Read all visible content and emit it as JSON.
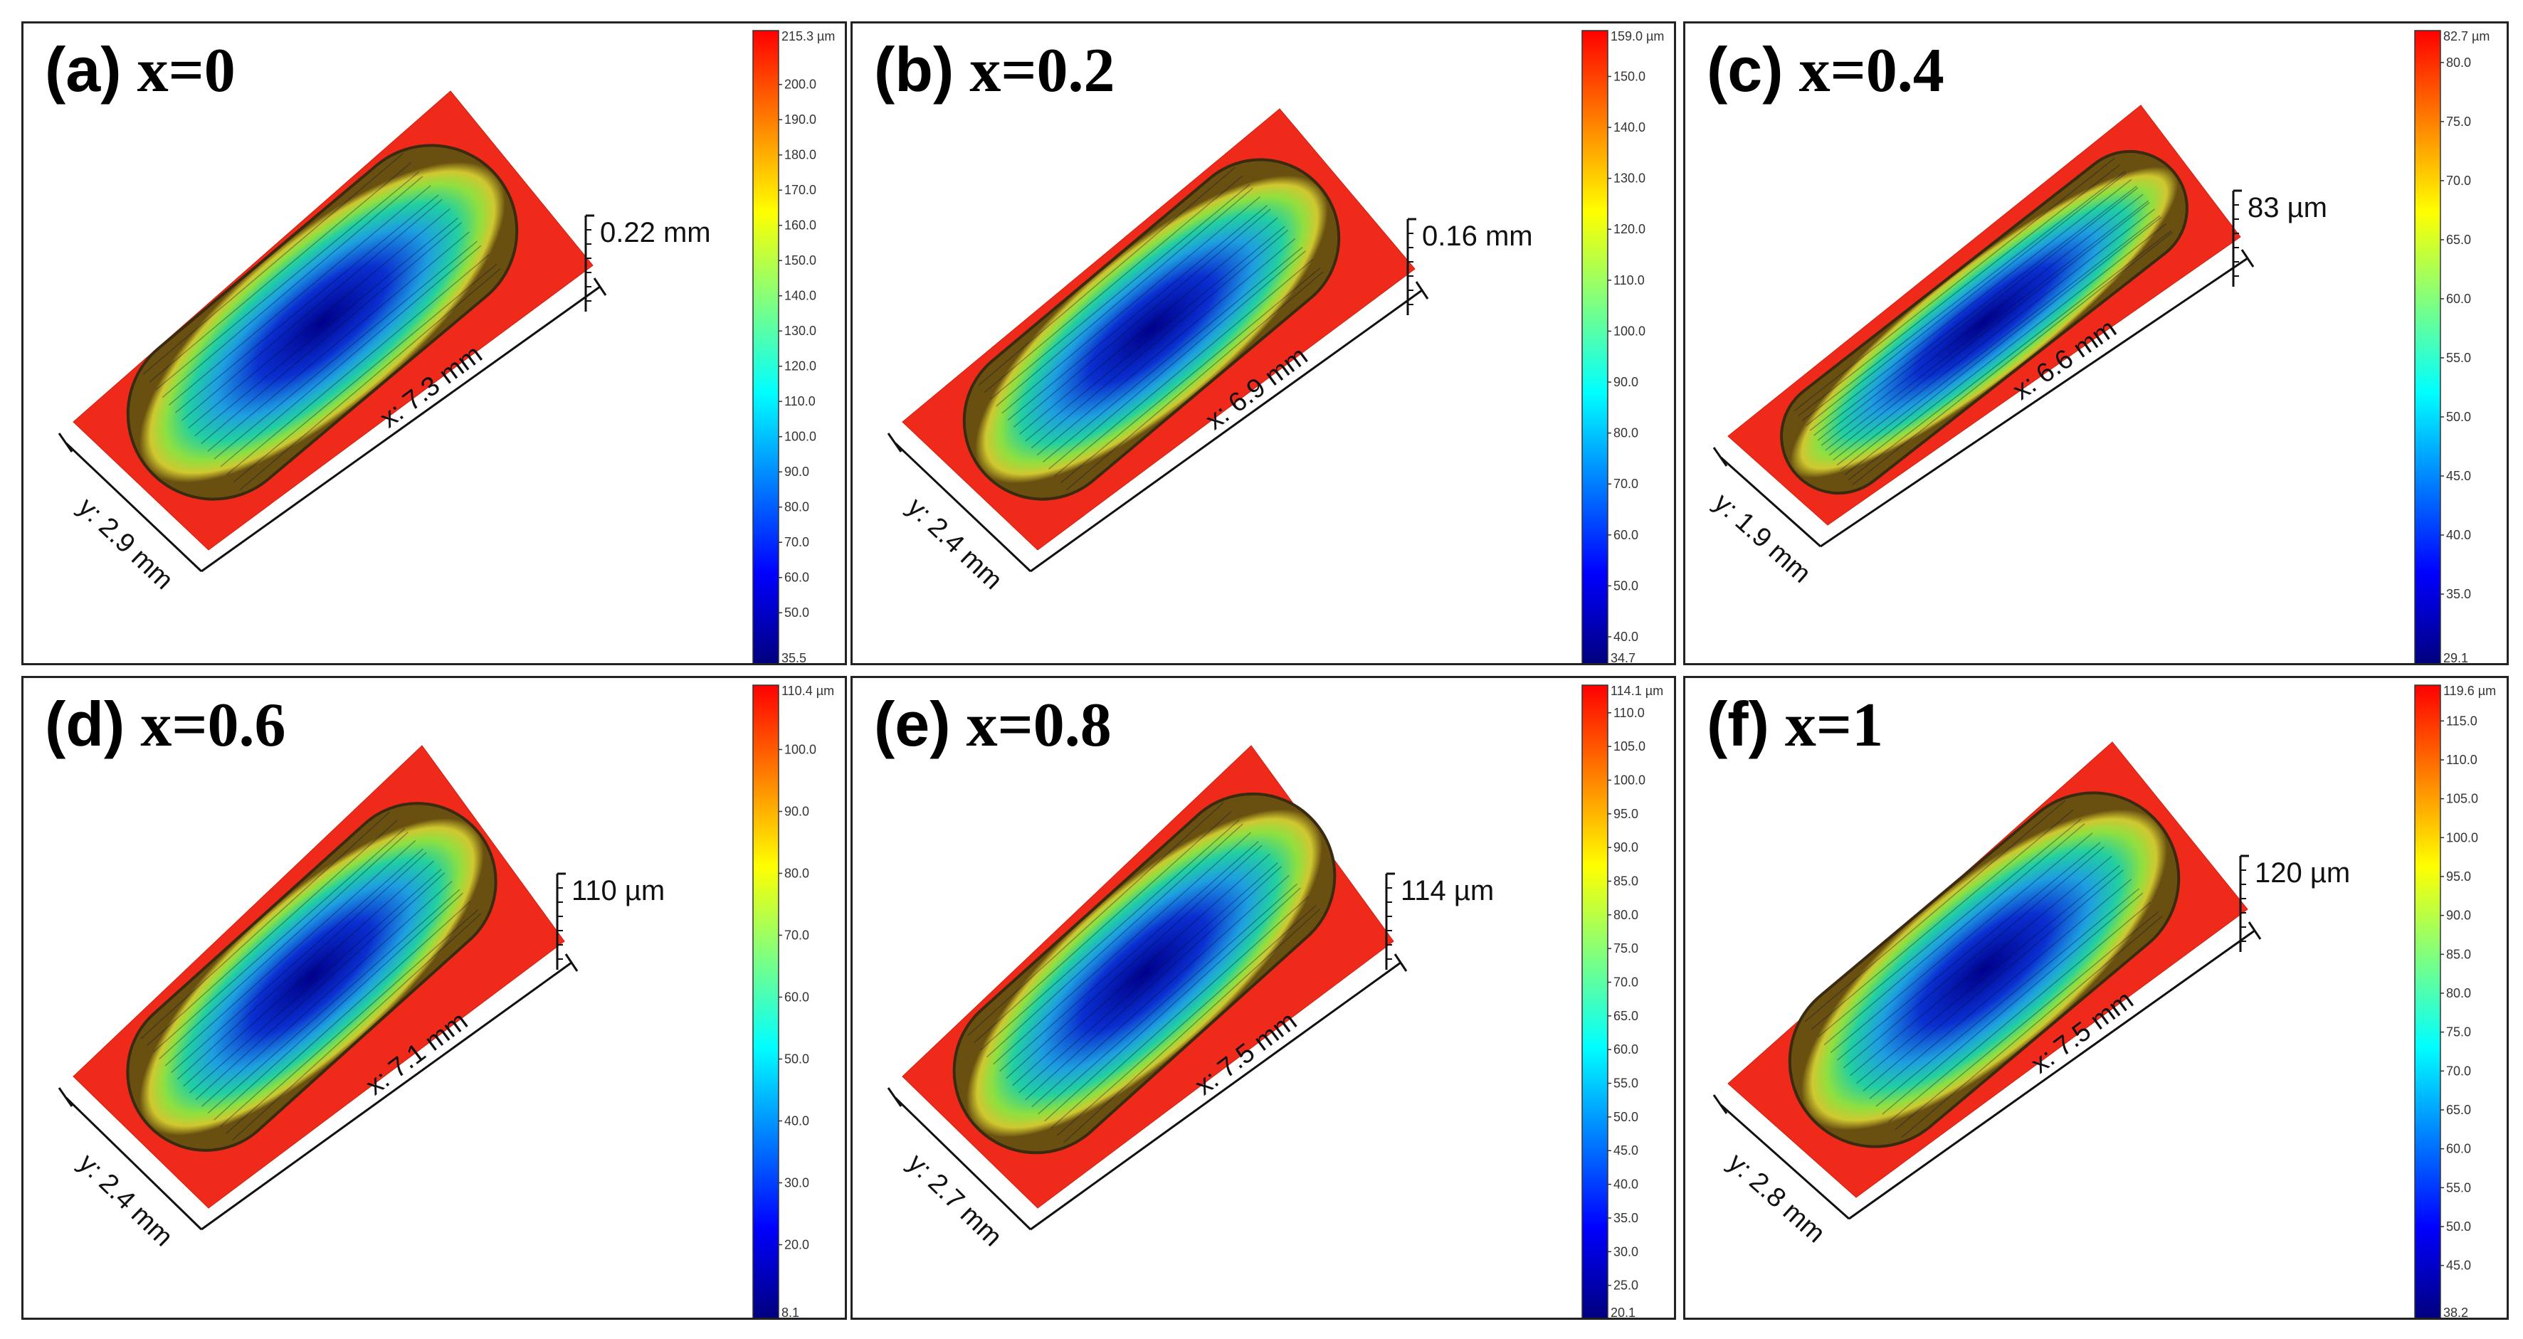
{
  "figure": {
    "panels": [
      {
        "id": "a",
        "label": "(a)",
        "composition": "x=0",
        "x_dim": "x: 7.3 mm",
        "y_dim": "y: 2.9 mm",
        "depth": "0.22 mm",
        "colorbar": {
          "max": "215.3 µm",
          "min": "35.5",
          "ticks": [
            200,
            190,
            180,
            170,
            160,
            150,
            140,
            130,
            120,
            110,
            100,
            90,
            80,
            70,
            60,
            50
          ],
          "tick_decimals": 1,
          "min_val": 35.5,
          "max_val": 215.3
        }
      },
      {
        "id": "b",
        "label": "(b)",
        "composition": "x=0.2",
        "x_dim": "x: 6.9 mm",
        "y_dim": "y: 2.4 mm",
        "depth": "0.16 mm",
        "colorbar": {
          "max": "159.0 µm",
          "min": "34.7",
          "ticks": [
            150,
            140,
            130,
            120,
            110,
            100,
            90,
            80,
            70,
            60,
            50,
            40
          ],
          "tick_decimals": 1,
          "min_val": 34.7,
          "max_val": 159.0
        }
      },
      {
        "id": "c",
        "label": "(c)",
        "composition": "x=0.4",
        "x_dim": "x: 6.6 mm",
        "y_dim": "y: 1.9 mm",
        "depth": "83 µm",
        "colorbar": {
          "max": "82.7 µm",
          "min": "29.1",
          "ticks": [
            80,
            75,
            70,
            65,
            60,
            55,
            50,
            45,
            40,
            35
          ],
          "tick_decimals": 1,
          "min_val": 29.1,
          "max_val": 82.7
        }
      },
      {
        "id": "d",
        "label": "(d)",
        "composition": "x=0.6",
        "x_dim": "x: 7.1 mm",
        "y_dim": "y: 2.4 mm",
        "depth": "110 µm",
        "colorbar": {
          "max": "110.4 µm",
          "min": "8.1",
          "ticks": [
            100,
            90,
            80,
            70,
            60,
            50,
            40,
            30,
            20
          ],
          "tick_decimals": 1,
          "min_val": 8.1,
          "max_val": 110.4
        }
      },
      {
        "id": "e",
        "label": "(e)",
        "composition": "x=0.8",
        "x_dim": "x: 7.5 mm",
        "y_dim": "y: 2.7 mm",
        "depth": "114 µm",
        "colorbar": {
          "max": "114.1 µm",
          "min": "20.1",
          "ticks": [
            110,
            105,
            100,
            95,
            90,
            85,
            80,
            75,
            70,
            65,
            60,
            55,
            50,
            45,
            40,
            35,
            30,
            25
          ],
          "tick_decimals": 1,
          "min_val": 20.1,
          "max_val": 114.1
        }
      },
      {
        "id": "f",
        "label": "(f)",
        "composition": "x=1",
        "x_dim": "x: 7.5 mm",
        "y_dim": "y: 2.8 mm",
        "depth": "120 µm",
        "colorbar": {
          "max": "119.6 µm",
          "min": "38.2",
          "ticks": [
            115,
            110,
            105,
            100,
            95,
            90,
            85,
            80,
            75,
            70,
            65,
            60,
            55,
            50,
            45
          ],
          "tick_decimals": 1,
          "min_val": 38.2,
          "max_val": 119.6
        }
      }
    ]
  }
}
